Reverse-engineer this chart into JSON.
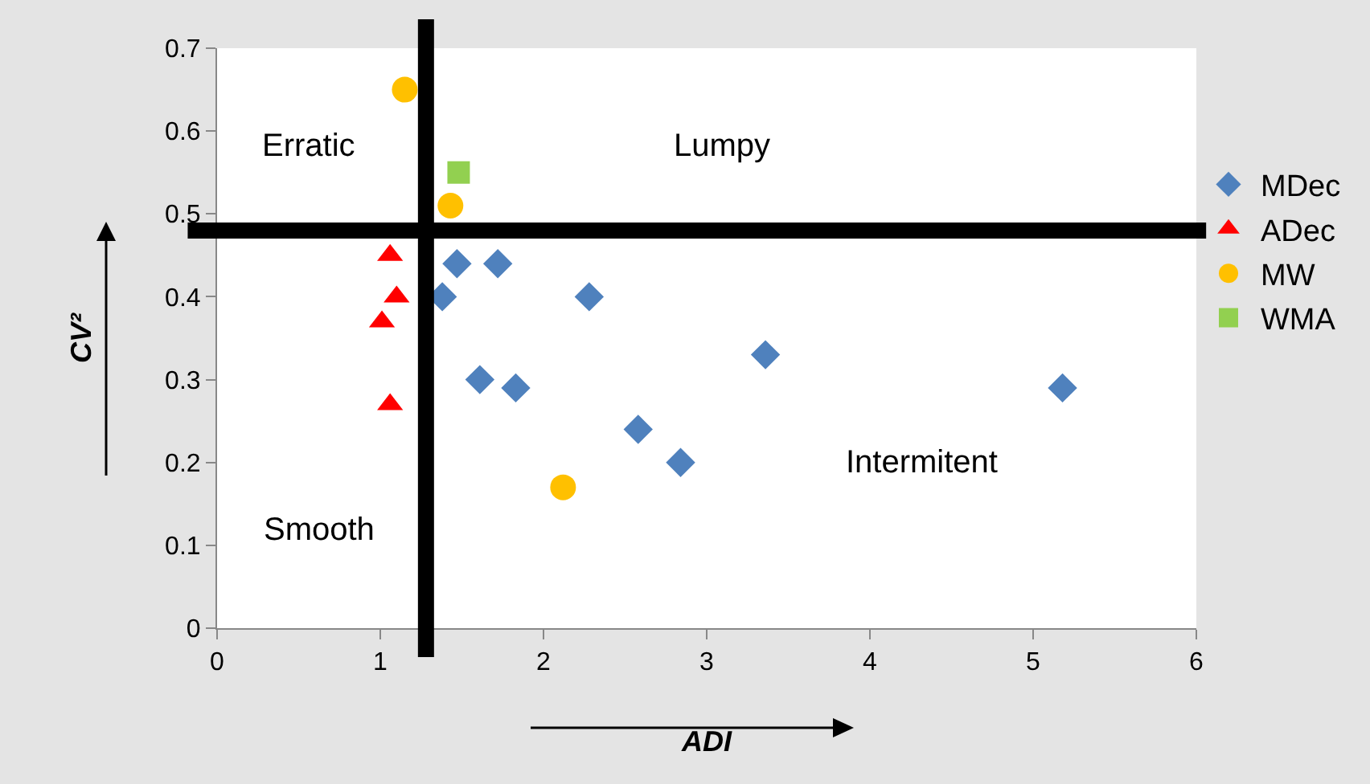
{
  "chart_data": {
    "type": "scatter",
    "xlabel": "ADI",
    "ylabel": "CV²",
    "xlim": [
      0,
      6
    ],
    "xticks": [
      0,
      1,
      2,
      3,
      4,
      5,
      6
    ],
    "ylim": [
      0,
      0.7
    ],
    "yticks": [
      0,
      0.1,
      0.2,
      0.3,
      0.4,
      0.5,
      0.6,
      0.7
    ],
    "grid": false,
    "legend": "right",
    "series": [
      {
        "name": "MDec",
        "color": "#4f81bd",
        "marker": "diamond",
        "x": [
          1.47,
          1.72,
          1.38,
          2.28,
          1.61,
          1.83,
          2.58,
          2.84,
          3.36,
          5.18
        ],
        "values": [
          0.44,
          0.44,
          0.4,
          0.4,
          0.3,
          0.29,
          0.24,
          0.2,
          0.33,
          0.29
        ]
      },
      {
        "name": "ADec",
        "color": "#ff0000",
        "marker": "triangle",
        "x": [
          1.06,
          1.1,
          1.01,
          1.06
        ],
        "values": [
          0.45,
          0.4,
          0.37,
          0.27
        ]
      },
      {
        "name": "MW",
        "color": "#ffc000",
        "marker": "circle",
        "x": [
          1.15,
          1.43,
          2.12
        ],
        "values": [
          0.65,
          0.51,
          0.17
        ]
      },
      {
        "name": "WMA",
        "color": "#92d050",
        "marker": "square",
        "x": [
          1.48
        ],
        "values": [
          0.55
        ]
      }
    ],
    "ref_lines": [
      {
        "axis": "x",
        "value": 1.28,
        "color": "#000000"
      },
      {
        "axis": "y",
        "value": 0.48,
        "color": "#000000"
      }
    ],
    "annotations": [
      "Erratic",
      "Lumpy",
      "Smooth",
      "Intermitent"
    ]
  }
}
